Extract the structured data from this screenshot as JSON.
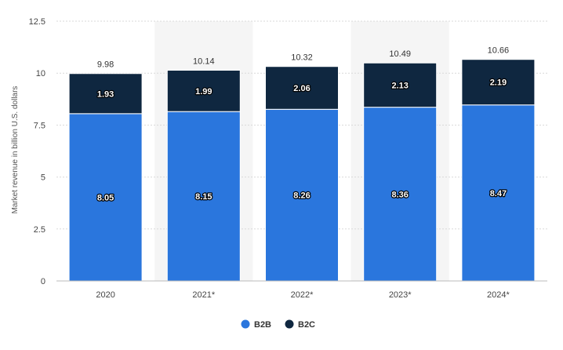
{
  "chart_data": {
    "type": "bar",
    "stacked": true,
    "categories": [
      "2020",
      "2021*",
      "2022*",
      "2023*",
      "2024*"
    ],
    "series": [
      {
        "name": "B2B",
        "color": "#2a76dd",
        "values": [
          8.05,
          8.15,
          8.26,
          8.36,
          8.47
        ]
      },
      {
        "name": "B2C",
        "color": "#0f2740",
        "values": [
          1.93,
          1.99,
          2.06,
          2.13,
          2.19
        ]
      }
    ],
    "totals": [
      "9.98",
      "10.14",
      "10.32",
      "10.49",
      "10.66"
    ],
    "segment_labels": [
      [
        "8.05",
        "8.15",
        "8.26",
        "8.36",
        "8.47"
      ],
      [
        "1.93",
        "1.99",
        "2.06",
        "2.13",
        "2.19"
      ]
    ],
    "y_ticks": [
      "0",
      "2.5",
      "5",
      "7.5",
      "10",
      "12.5"
    ],
    "ylim": [
      0,
      12.5
    ],
    "ylabel": "Market revenue in billion U.S. dollars",
    "xlabel": "",
    "grid": true,
    "shaded_categories": [
      "2021*",
      "2023*"
    ],
    "legend_position": "bottom-center"
  }
}
